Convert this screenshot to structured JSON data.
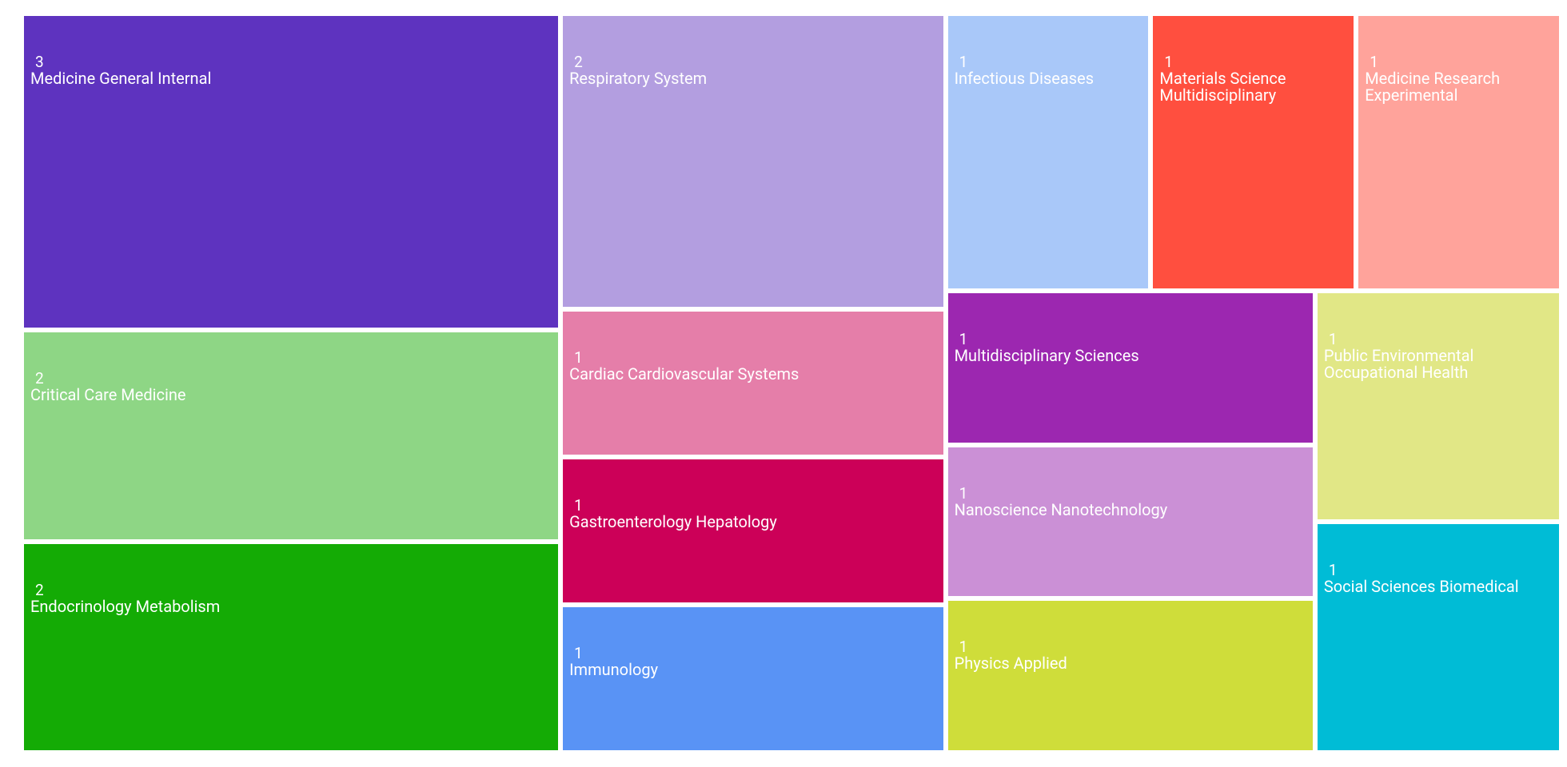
{
  "chart_data": {
    "type": "treemap",
    "categories": [
      "Medicine General Internal",
      "Critical Care Medicine",
      "Endocrinology Metabolism",
      "Respiratory System",
      "Cardiac Cardiovascular Systems",
      "Gastroenterology Hepatology",
      "Immunology",
      "Infectious Diseases",
      "Materials Science Multidisciplinary",
      "Medicine Research Experimental",
      "Multidisciplinary Sciences",
      "Nanoscience Nanotechnology",
      "Physics Applied",
      "Public Environmental Occupational Health",
      "Social Sciences Biomedical"
    ],
    "values": [
      3,
      2,
      2,
      2,
      1,
      1,
      1,
      1,
      1,
      1,
      1,
      1,
      1,
      1,
      1
    ],
    "colors": [
      "#5e33bf",
      "#8ed685",
      "#14ab05",
      "#b39ee0",
      "#e57ea9",
      "#cc0058",
      "#5993f5",
      "#a9c8f9",
      "#ff4f3f",
      "#ffa39b",
      "#9c27b0",
      "#cb90d6",
      "#cfdd3a",
      "#e1e786",
      "#00bcd6"
    ]
  }
}
